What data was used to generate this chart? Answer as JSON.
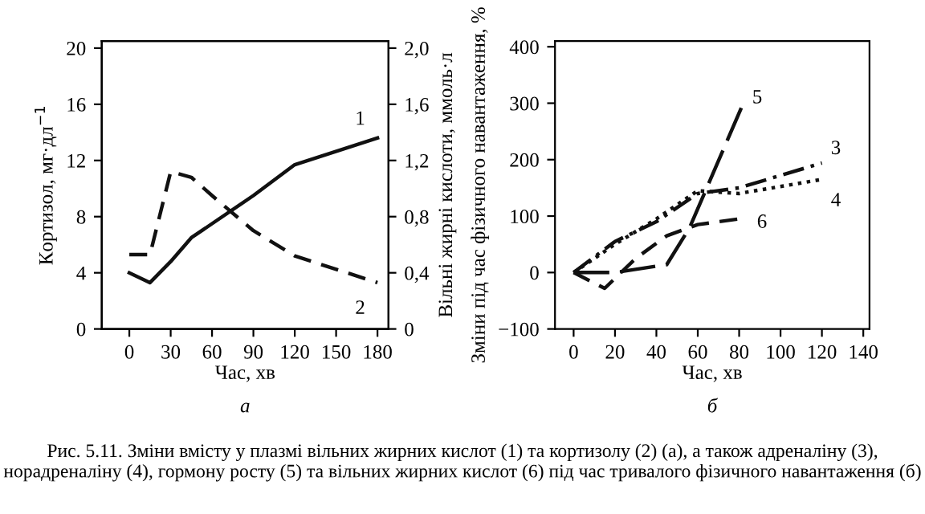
{
  "chart_data": [
    {
      "type": "line",
      "xlabel": "Час, хв",
      "ylabel": "Кортизол, мг·дл$^{−1}$",
      "y2label": "Вільні жирні кислоти, ммоль·л",
      "annotations": [
        "а"
      ],
      "xlim": [
        -20,
        188
      ],
      "xticks": [
        0,
        30,
        60,
        90,
        120,
        150,
        180
      ],
      "ylim": [
        0,
        20.5
      ],
      "yticks": [
        0,
        4,
        8,
        12,
        16,
        20
      ],
      "y2lim": [
        0,
        2.05
      ],
      "y2ticks": [
        0,
        {
          "value": 0.4,
          "label": "0,4"
        },
        {
          "value": 0.8,
          "label": "0,8"
        },
        {
          "value": 1.2,
          "label": "1,2"
        },
        {
          "value": 1.6,
          "label": "1,6"
        },
        {
          "value": 2.0,
          "label": "2,0"
        }
      ],
      "grid": false,
      "legend": false,
      "marker": "none",
      "series": [
        {
          "name": "1",
          "color": "#111111",
          "axis": "y2",
          "line_style": "solid",
          "x": [
            0,
            15,
            30,
            45,
            60,
            90,
            120,
            180
          ],
          "values": [
            0.4,
            0.33,
            0.48,
            0.65,
            0.75,
            0.95,
            1.17,
            1.36
          ]
        },
        {
          "name": "2",
          "color": "#111111",
          "axis": "y",
          "line_style": "dashed",
          "x": [
            0,
            15,
            30,
            45,
            60,
            90,
            120,
            180
          ],
          "values": [
            5.3,
            5.3,
            11.2,
            10.8,
            9.5,
            7.0,
            5.2,
            3.3
          ]
        }
      ]
    },
    {
      "type": "line",
      "xlabel": "Час, хв",
      "ylabel": "Зміни під час фізичного навантаження, %",
      "annotations": [
        "б",
        "Рис. 5.11. Зміни вмісту у плазмі вільних жирних кислот (1) та кортизолу (2) (а), а також адреналіну (3), норадреналіну (4), гормону росту (5) та вільних жирних кислот (6) під час тривалого фізичного навантаження (б)"
      ],
      "xlim": [
        -9,
        143
      ],
      "xticks": [
        0,
        20,
        40,
        60,
        80,
        100,
        120,
        140
      ],
      "ylim": [
        -100,
        410
      ],
      "yticks": [
        -100,
        0,
        100,
        200,
        300,
        400
      ],
      "grid": false,
      "legend": false,
      "marker": "none",
      "series": [
        {
          "name": "3",
          "color": "#111111",
          "line_style": "dashdot",
          "x": [
            0,
            20,
            40,
            60,
            80,
            120
          ],
          "values": [
            0,
            55,
            90,
            140,
            150,
            194
          ]
        },
        {
          "name": "4",
          "color": "#111111",
          "line_style": "dotted",
          "x": [
            0,
            20,
            40,
            60,
            80,
            120
          ],
          "values": [
            0,
            50,
            95,
            145,
            140,
            165
          ]
        },
        {
          "name": "5",
          "color": "#111111",
          "line_style": "longdash",
          "x": [
            0,
            20,
            45,
            56,
            82
          ],
          "values": [
            0,
            0,
            14,
            79,
            300
          ]
        },
        {
          "name": "6",
          "color": "#111111",
          "line_style": "dashed",
          "x": [
            0,
            15,
            30,
            45,
            60,
            80
          ],
          "values": [
            0,
            -28,
            25,
            65,
            85,
            95
          ]
        }
      ]
    }
  ]
}
